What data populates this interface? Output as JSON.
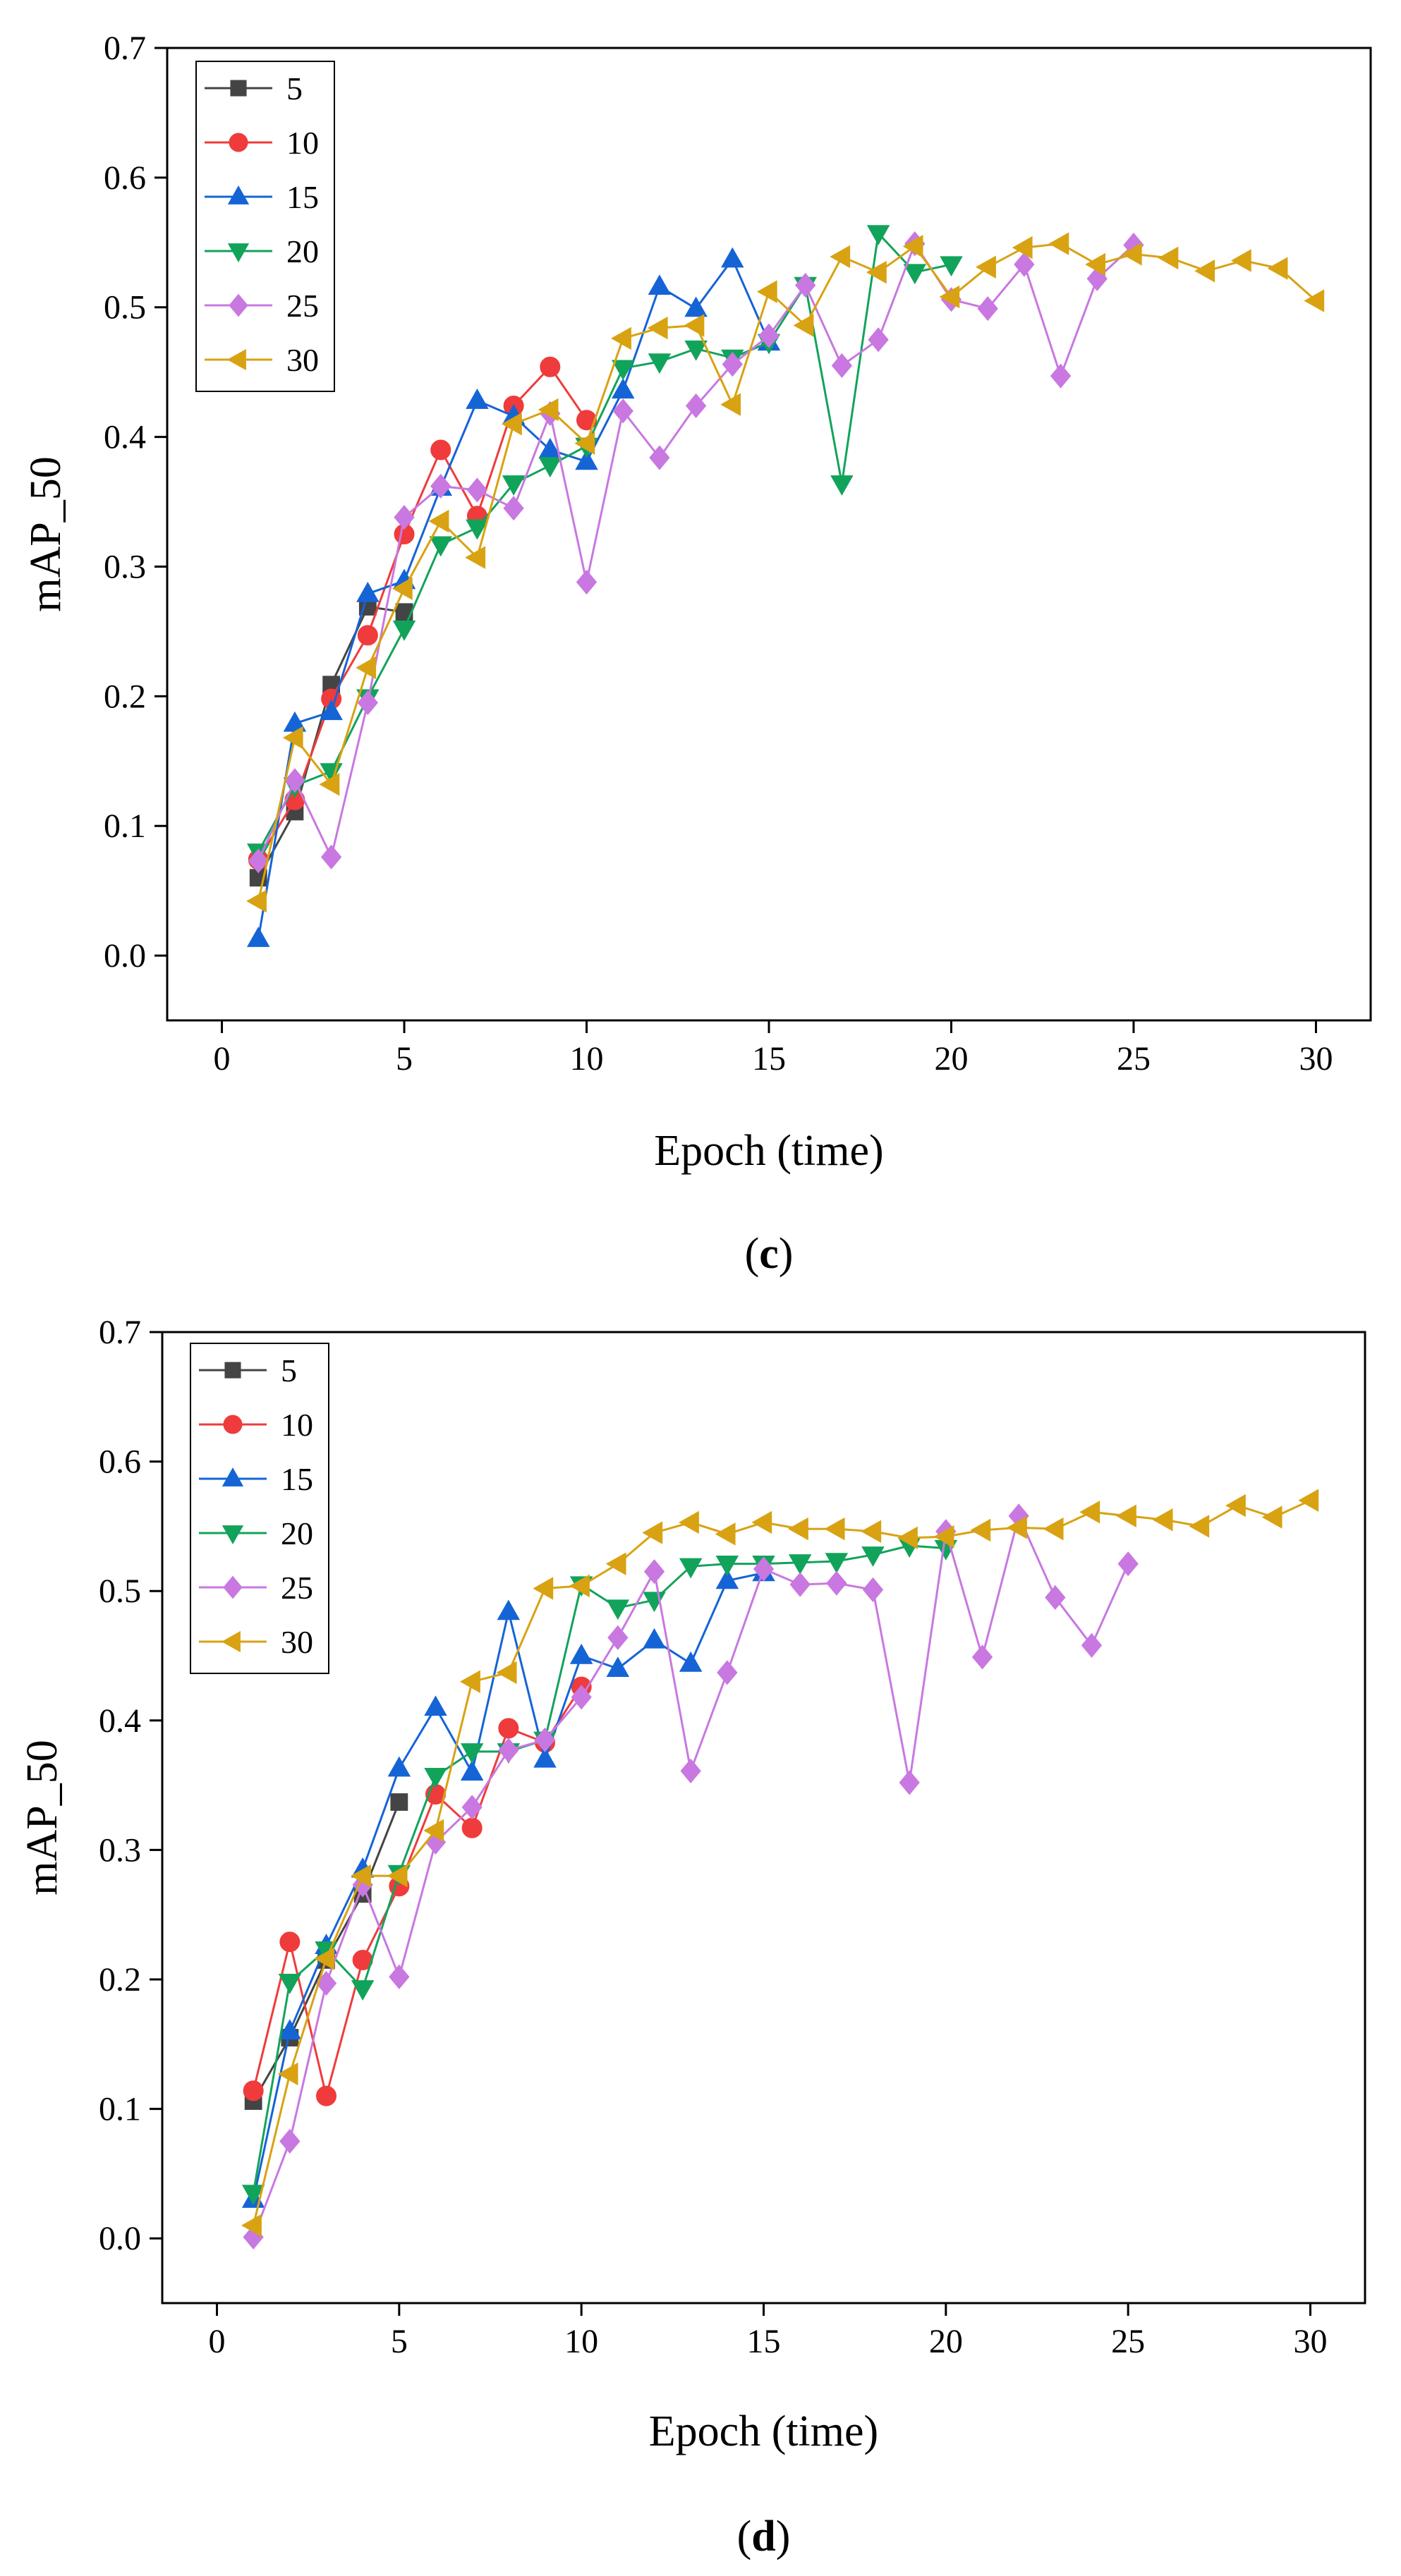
{
  "chart_data": [
    {
      "type": "line",
      "panel_label_open": "(",
      "panel_label_letter": "c",
      "panel_label_close": ")",
      "xlabel": "Epoch (time)",
      "ylabel": "mAP_50",
      "xlim": [
        -1.5,
        31.5
      ],
      "ylim": [
        -0.05,
        0.7
      ],
      "xticks": [
        0,
        5,
        10,
        15,
        20,
        25,
        30
      ],
      "yticks": [
        0.0,
        0.1,
        0.2,
        0.3,
        0.4,
        0.5,
        0.6,
        0.7
      ],
      "legend_position": "top-left",
      "series": [
        {
          "name": "5",
          "color": "#444444",
          "marker": "square",
          "x": [
            1,
            2,
            3,
            4,
            5
          ],
          "y": [
            0.06,
            0.111,
            0.209,
            0.269,
            0.265
          ]
        },
        {
          "name": "10",
          "color": "#ef3b3b",
          "marker": "circle",
          "x": [
            1,
            2,
            3,
            4,
            5,
            6,
            7,
            8,
            9,
            10
          ],
          "y": [
            0.074,
            0.12,
            0.198,
            0.247,
            0.325,
            0.39,
            0.339,
            0.424,
            0.454,
            0.413
          ]
        },
        {
          "name": "15",
          "color": "#1464d6",
          "marker": "triangle-up",
          "x": [
            1,
            2,
            3,
            4,
            5,
            6,
            7,
            8,
            9,
            10,
            11,
            12,
            13,
            14,
            15
          ],
          "y": [
            0.013,
            0.179,
            0.188,
            0.279,
            0.289,
            0.361,
            0.428,
            0.416,
            0.39,
            0.381,
            0.436,
            0.516,
            0.499,
            0.537,
            0.473
          ]
        },
        {
          "name": "20",
          "color": "#12a35b",
          "marker": "triangle-down",
          "x": [
            1,
            2,
            3,
            4,
            5,
            6,
            7,
            8,
            9,
            10,
            11,
            12,
            13,
            14,
            15,
            16,
            17,
            18,
            19,
            20
          ],
          "y": [
            0.08,
            0.131,
            0.142,
            0.199,
            0.252,
            0.317,
            0.33,
            0.364,
            0.378,
            0.393,
            0.453,
            0.458,
            0.468,
            0.461,
            0.473,
            0.517,
            0.364,
            0.557,
            0.527,
            0.533
          ]
        },
        {
          "name": "25",
          "color": "#c878e0",
          "marker": "diamond",
          "x": [
            1,
            2,
            3,
            4,
            5,
            6,
            7,
            8,
            9,
            10,
            11,
            12,
            13,
            14,
            15,
            16,
            17,
            18,
            19,
            20,
            21,
            22,
            23,
            24,
            25
          ],
          "y": [
            0.073,
            0.135,
            0.076,
            0.195,
            0.338,
            0.362,
            0.359,
            0.345,
            0.418,
            0.288,
            0.42,
            0.384,
            0.424,
            0.456,
            0.478,
            0.517,
            0.455,
            0.475,
            0.549,
            0.506,
            0.499,
            0.533,
            0.447,
            0.522,
            0.548
          ]
        },
        {
          "name": "30",
          "color": "#d8a212",
          "marker": "triangle-left",
          "x": [
            1,
            2,
            3,
            4,
            5,
            6,
            7,
            8,
            9,
            10,
            11,
            12,
            13,
            14,
            15,
            16,
            17,
            18,
            19,
            20,
            21,
            22,
            23,
            24,
            25,
            26,
            27,
            28,
            29,
            30
          ],
          "y": [
            0.042,
            0.168,
            0.132,
            0.222,
            0.283,
            0.335,
            0.307,
            0.41,
            0.421,
            0.395,
            0.476,
            0.484,
            0.486,
            0.425,
            0.512,
            0.486,
            0.539,
            0.527,
            0.547,
            0.508,
            0.531,
            0.546,
            0.549,
            0.533,
            0.541,
            0.538,
            0.528,
            0.536,
            0.53,
            0.505
          ]
        }
      ]
    },
    {
      "type": "line",
      "panel_label_open": "(",
      "panel_label_letter": "d",
      "panel_label_close": ")",
      "xlabel": "Epoch (time)",
      "ylabel": "mAP_50",
      "xlim": [
        -1.5,
        31.5
      ],
      "ylim": [
        -0.05,
        0.7
      ],
      "xticks": [
        0,
        5,
        10,
        15,
        20,
        25,
        30
      ],
      "yticks": [
        0.0,
        0.1,
        0.2,
        0.3,
        0.4,
        0.5,
        0.6,
        0.7
      ],
      "legend_position": "top-left",
      "series": [
        {
          "name": "5",
          "color": "#444444",
          "marker": "square",
          "x": [
            1,
            2,
            3,
            4,
            5
          ],
          "y": [
            0.106,
            0.155,
            0.215,
            0.266,
            0.337
          ]
        },
        {
          "name": "10",
          "color": "#ef3b3b",
          "marker": "circle",
          "x": [
            1,
            2,
            3,
            4,
            5,
            6,
            7,
            8,
            9,
            10
          ],
          "y": [
            0.114,
            0.229,
            0.11,
            0.215,
            0.272,
            0.343,
            0.317,
            0.394,
            0.383,
            0.426
          ]
        },
        {
          "name": "15",
          "color": "#1464d6",
          "marker": "triangle-up",
          "x": [
            1,
            2,
            3,
            4,
            5,
            6,
            7,
            8,
            9,
            10,
            11,
            12,
            13,
            14,
            15
          ],
          "y": [
            0.03,
            0.16,
            0.226,
            0.285,
            0.363,
            0.41,
            0.36,
            0.484,
            0.37,
            0.45,
            0.44,
            0.462,
            0.444,
            0.508,
            0.514
          ]
        },
        {
          "name": "20",
          "color": "#12a35b",
          "marker": "triangle-down",
          "x": [
            1,
            2,
            3,
            4,
            5,
            6,
            7,
            8,
            9,
            10,
            11,
            12,
            13,
            14,
            15,
            16,
            17,
            18,
            19,
            20
          ],
          "y": [
            0.035,
            0.198,
            0.223,
            0.193,
            0.282,
            0.357,
            0.376,
            0.376,
            0.385,
            0.505,
            0.487,
            0.493,
            0.519,
            0.521,
            0.521,
            0.522,
            0.523,
            0.528,
            0.535,
            0.533
          ]
        },
        {
          "name": "25",
          "color": "#c878e0",
          "marker": "diamond",
          "x": [
            1,
            2,
            3,
            4,
            5,
            6,
            7,
            8,
            9,
            10,
            11,
            12,
            13,
            14,
            15,
            16,
            17,
            18,
            19,
            20,
            21,
            22,
            23,
            24,
            25
          ],
          "y": [
            0.001,
            0.075,
            0.197,
            0.273,
            0.202,
            0.306,
            0.333,
            0.377,
            0.385,
            0.418,
            0.464,
            0.515,
            0.361,
            0.437,
            0.517,
            0.505,
            0.506,
            0.501,
            0.352,
            0.546,
            0.449,
            0.558,
            0.495,
            0.458,
            0.521
          ]
        },
        {
          "name": "30",
          "color": "#d8a212",
          "marker": "triangle-left",
          "x": [
            1,
            2,
            3,
            4,
            5,
            6,
            7,
            8,
            9,
            10,
            11,
            12,
            13,
            14,
            15,
            16,
            17,
            18,
            19,
            20,
            21,
            22,
            23,
            24,
            25,
            26,
            27,
            28,
            29,
            30
          ],
          "y": [
            0.01,
            0.127,
            0.216,
            0.28,
            0.28,
            0.315,
            0.43,
            0.437,
            0.502,
            0.504,
            0.521,
            0.545,
            0.553,
            0.544,
            0.553,
            0.548,
            0.548,
            0.546,
            0.541,
            0.542,
            0.547,
            0.549,
            0.548,
            0.561,
            0.558,
            0.555,
            0.55,
            0.566,
            0.557,
            0.57
          ]
        }
      ]
    }
  ]
}
